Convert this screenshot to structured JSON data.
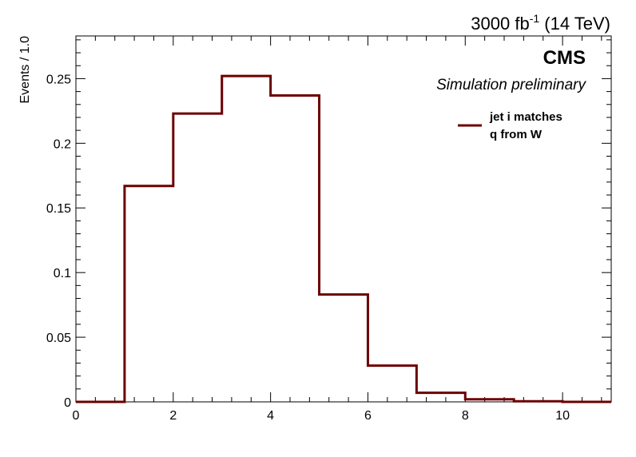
{
  "chart_data": {
    "type": "step-histogram",
    "lumi_label": {
      "main": "3000 fb",
      "sup": "-1",
      "rest": " (14 TeV)"
    },
    "experiment_label": "CMS",
    "status_label": "Simulation preliminary",
    "ylabel": "Events / 1.0",
    "xlabel": "",
    "xlim": [
      0,
      11
    ],
    "ylim": [
      0,
      0.283
    ],
    "x_ticks": [
      "0",
      "2",
      "4",
      "6",
      "8",
      "10"
    ],
    "y_ticks": [
      "0",
      "0.05",
      "0.1",
      "0.15",
      "0.2",
      "0.25"
    ],
    "bin_edges": [
      0,
      1,
      2,
      3,
      4,
      5,
      6,
      7,
      8,
      9,
      10,
      11
    ],
    "series": [
      {
        "name": "jet i matches q from W",
        "legend_lines": [
          "jet i matches",
          "q from W"
        ],
        "color": "#6b0000",
        "values": [
          0,
          0.167,
          0.223,
          0.252,
          0.237,
          0.083,
          0.028,
          0.007,
          0.002,
          0.0005,
          0
        ]
      }
    ],
    "legend_position": "top-right",
    "grid": false
  }
}
